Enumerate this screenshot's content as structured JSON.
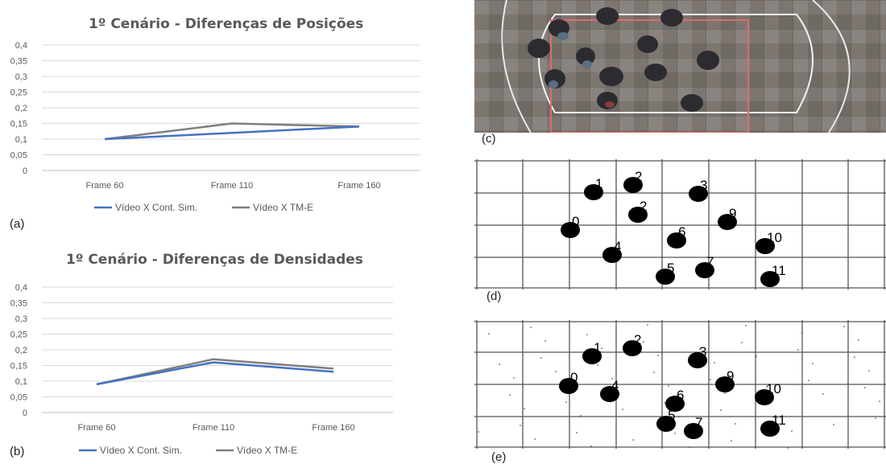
{
  "chart_data": [
    {
      "type": "line",
      "title": "1º Cenário - Diferenças de Posições",
      "categories": [
        "Frame 60",
        "Frame 110",
        "Frame 160"
      ],
      "yticks": [
        "0",
        "0,05",
        "0,1",
        "0,15",
        "0,2",
        "0,25",
        "0,3",
        "0,35",
        "0,4"
      ],
      "ylim": [
        0,
        0.4
      ],
      "grid": true,
      "legend_position": "bottom",
      "series": [
        {
          "name": "Vídeo X Cont. Sim.",
          "values": [
            0.1,
            0.12,
            0.14
          ],
          "color": "#4472C4"
        },
        {
          "name": "Vídeo X TM-E",
          "values": [
            0.1,
            0.15,
            0.14
          ],
          "color": "#7F7F7F"
        }
      ]
    },
    {
      "type": "line",
      "title": "1º Cenário - Diferenças de Densidades",
      "categories": [
        "Frame 60",
        "Frame 110",
        "Frame 160"
      ],
      "yticks": [
        "0",
        "0,05",
        "0,1",
        "0,15",
        "0,2",
        "0,25",
        "0,3",
        "0,35",
        "0,4"
      ],
      "ylim": [
        0,
        0.4
      ],
      "grid": true,
      "legend_position": "bottom",
      "series": [
        {
          "name": "Vídeo X Cont. Sim.",
          "values": [
            0.09,
            0.16,
            0.13
          ],
          "color": "#4472C4"
        },
        {
          "name": "Vídeo X TM-E",
          "values": [
            0.09,
            0.17,
            0.14
          ],
          "color": "#7F7F7F"
        }
      ]
    }
  ],
  "panels": {
    "a": "(a)",
    "b": "(b)",
    "c": "(c)",
    "d": "(d)",
    "e": "(e)"
  },
  "grid_d_labels": [
    "1",
    "2",
    "3",
    "0",
    "2",
    "9",
    "6",
    "10",
    "4",
    "5",
    "7",
    "11"
  ],
  "grid_e_labels": [
    "1",
    "2",
    "3",
    "0",
    "9",
    "4",
    "6",
    "10",
    "5",
    "7",
    "11"
  ]
}
